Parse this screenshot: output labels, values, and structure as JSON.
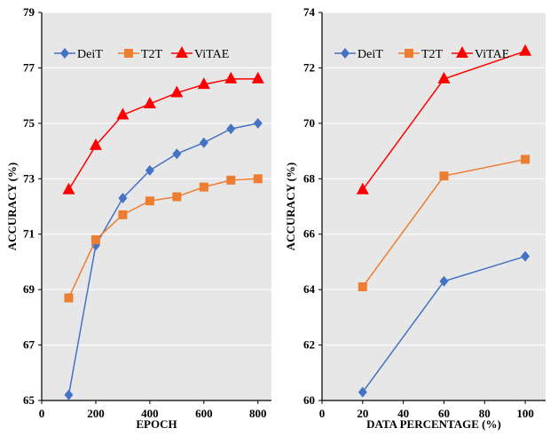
{
  "colors": {
    "plot_bg": "#e7e7e7",
    "grid": "#ffffff"
  },
  "chart_data": [
    {
      "type": "line",
      "xlabel": "EPOCH",
      "ylabel": "ACCURACY (%)",
      "xlim": [
        0,
        850
      ],
      "ylim": [
        65,
        79
      ],
      "xticks": [
        0,
        200,
        400,
        600,
        800
      ],
      "yticks": [
        65,
        67,
        69,
        71,
        73,
        75,
        77,
        79
      ],
      "grid": "horizontal",
      "legend_position": "top-left",
      "x": [
        100,
        200,
        300,
        400,
        500,
        600,
        700,
        800
      ],
      "series": [
        {
          "name": "DeiT",
          "color": "#4472c4",
          "marker": "diamond",
          "values": [
            65.2,
            70.6,
            72.3,
            73.3,
            73.9,
            74.3,
            74.8,
            75.0
          ]
        },
        {
          "name": "T2T",
          "color": "#ed7d31",
          "marker": "square",
          "values": [
            68.7,
            70.8,
            71.7,
            72.2,
            72.35,
            72.7,
            72.95,
            73.0
          ]
        },
        {
          "name": "ViTAE",
          "color": "#ff0000",
          "marker": "triangle",
          "values": [
            72.6,
            74.2,
            75.3,
            75.7,
            76.1,
            76.4,
            76.6,
            76.6
          ]
        }
      ]
    },
    {
      "type": "line",
      "xlabel": "DATA PERCENTAGE (%)",
      "ylabel": "ACCURACY (%)",
      "xlim": [
        0,
        110
      ],
      "ylim": [
        60,
        74
      ],
      "xticks": [
        0,
        20,
        40,
        60,
        80,
        100
      ],
      "yticks": [
        60,
        62,
        64,
        66,
        68,
        70,
        72,
        74
      ],
      "grid": "horizontal",
      "legend_position": "top-left",
      "x": [
        20,
        60,
        100
      ],
      "series": [
        {
          "name": "DeiT",
          "color": "#4472c4",
          "marker": "diamond",
          "values": [
            60.3,
            64.3,
            65.2
          ]
        },
        {
          "name": "T2T",
          "color": "#ed7d31",
          "marker": "square",
          "values": [
            64.1,
            68.1,
            68.7
          ]
        },
        {
          "name": "ViTAE",
          "color": "#ff0000",
          "marker": "triangle",
          "values": [
            67.6,
            71.6,
            72.6
          ]
        }
      ]
    }
  ]
}
